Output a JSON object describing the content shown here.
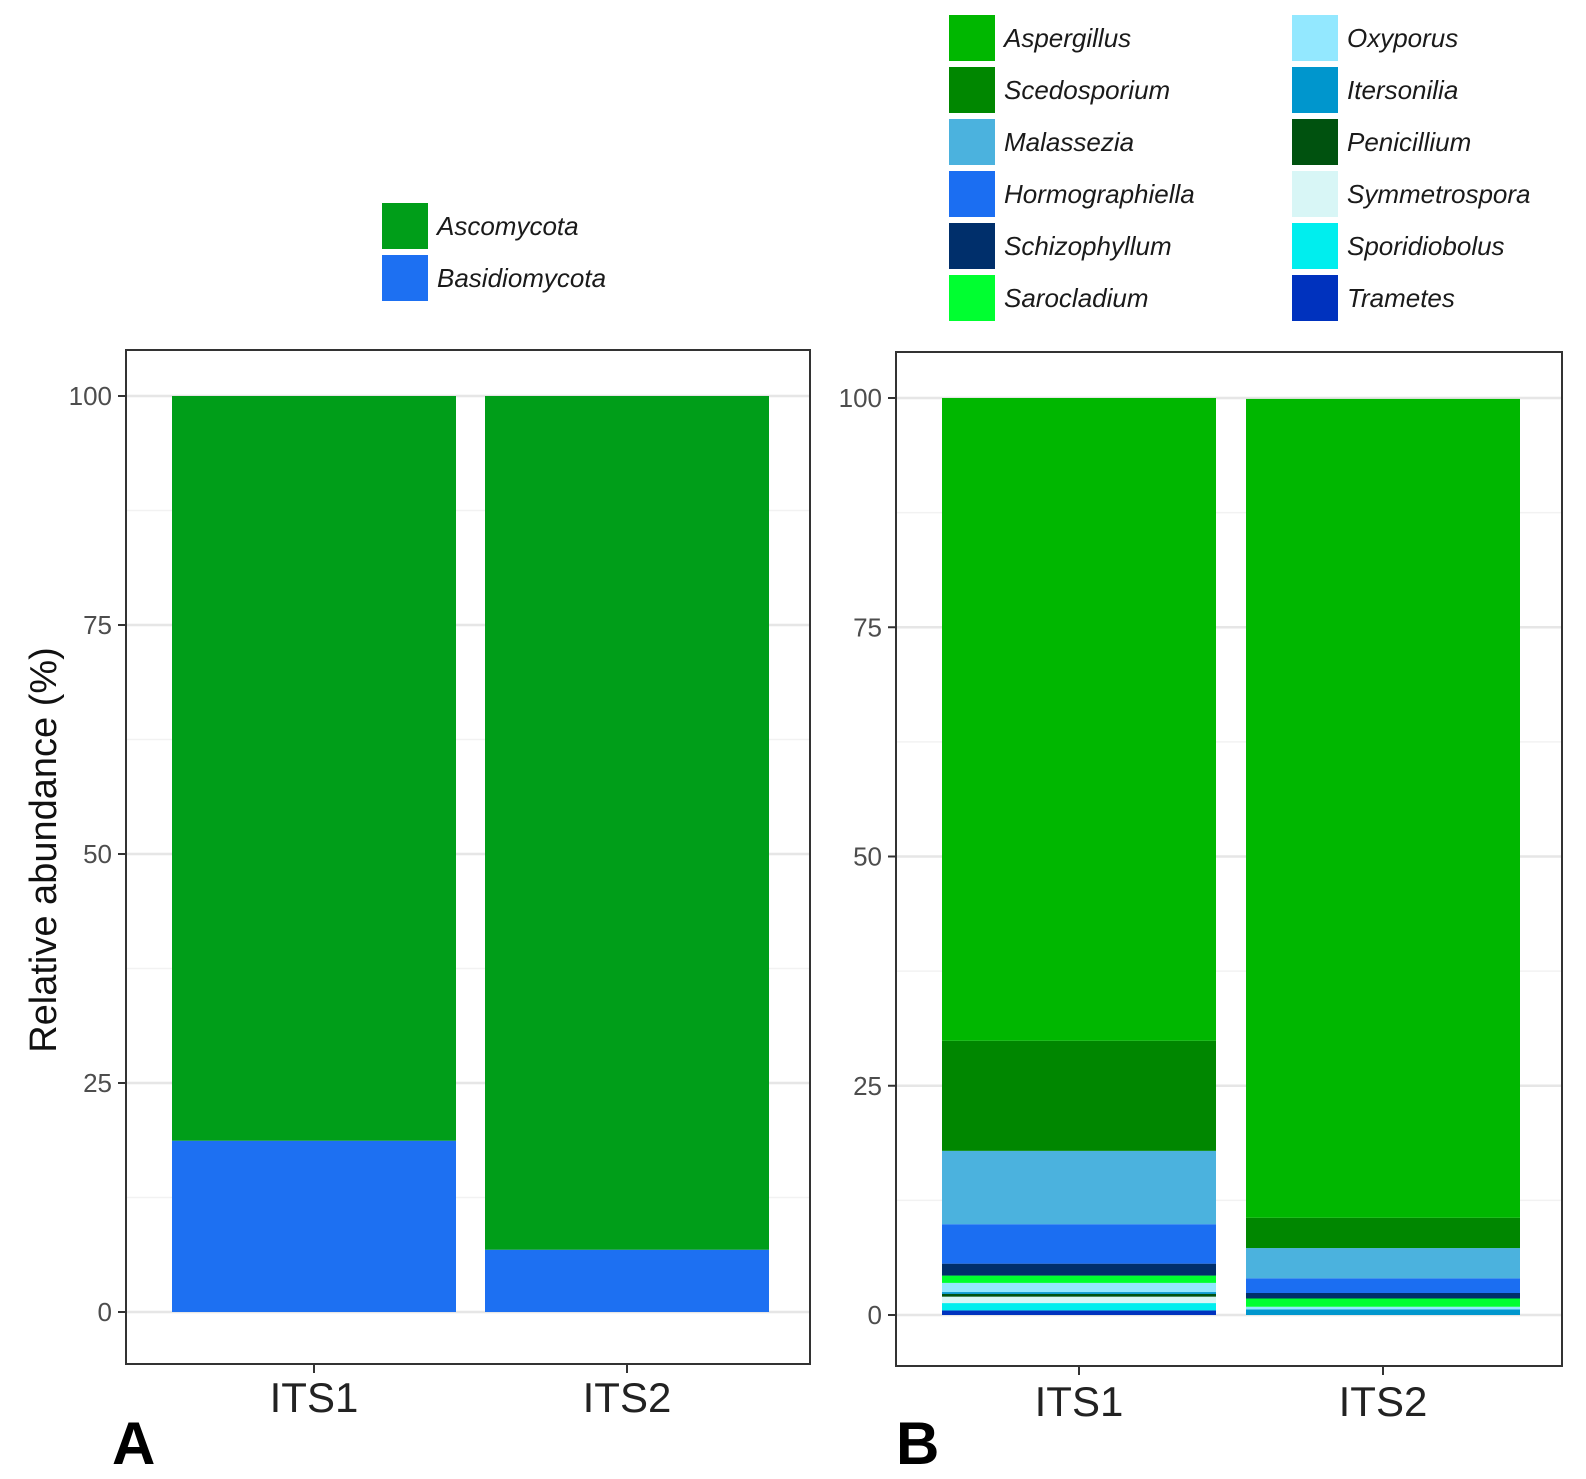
{
  "chart_data": [
    {
      "panel": "A",
      "type": "bar",
      "stacked": true,
      "ylabel": "Relative abundance (%)",
      "ylim": [
        0,
        100
      ],
      "yticks": [
        "0",
        "25",
        "50",
        "75",
        "100"
      ],
      "categories": [
        "ITS1",
        "ITS2"
      ],
      "legend": [
        {
          "name": "Ascomycota",
          "color": "#009e19"
        },
        {
          "name": "Basidiomycota",
          "color": "#1d70f2"
        }
      ],
      "series": [
        {
          "name": "Basidiomycota",
          "color": "#1d70f2",
          "values": [
            18.7,
            6.8
          ]
        },
        {
          "name": "Ascomycota",
          "color": "#009e19",
          "values": [
            81.3,
            93.2
          ]
        }
      ]
    },
    {
      "panel": "B",
      "type": "bar",
      "stacked": true,
      "ylim": [
        0,
        100
      ],
      "yticks": [
        "0",
        "25",
        "50",
        "75",
        "100"
      ],
      "categories": [
        "ITS1",
        "ITS2"
      ],
      "legend": [
        {
          "name": "Aspergillus",
          "color": "#00b700"
        },
        {
          "name": "Scedosporium",
          "color": "#008700"
        },
        {
          "name": "Malassezia",
          "color": "#4bb2de"
        },
        {
          "name": "Hormographiella",
          "color": "#1b6ef2"
        },
        {
          "name": "Schizophyllum",
          "color": "#002f6b"
        },
        {
          "name": "Sarocladium",
          "color": "#00ff30"
        },
        {
          "name": "Oxyporus",
          "color": "#93e8ff"
        },
        {
          "name": "Itersonilia",
          "color": "#0096cd"
        },
        {
          "name": "Penicillium",
          "color": "#00520f"
        },
        {
          "name": "Symmetrospora",
          "color": "#d8f6f6"
        },
        {
          "name": "Sporidiobolus",
          "color": "#00eeee"
        },
        {
          "name": "Trametes",
          "color": "#0032be"
        }
      ],
      "series": [
        {
          "name": "Trametes",
          "color": "#0032be",
          "values": [
            0.5,
            0.0
          ]
        },
        {
          "name": "Sporidiobolus",
          "color": "#00eeee",
          "values": [
            0.8,
            0.0
          ]
        },
        {
          "name": "Symmetrospora",
          "color": "#d8f6f6",
          "values": [
            0.7,
            0.0
          ]
        },
        {
          "name": "Penicillium",
          "color": "#00520f",
          "values": [
            0.3,
            0.0
          ]
        },
        {
          "name": "Itersonilia",
          "color": "#0096cd",
          "values": [
            0.2,
            0.6
          ]
        },
        {
          "name": "Oxyporus",
          "color": "#93e8ff",
          "values": [
            1.0,
            0.3
          ]
        },
        {
          "name": "Sarocladium",
          "color": "#00ff30",
          "values": [
            0.8,
            0.9
          ]
        },
        {
          "name": "Schizophyllum",
          "color": "#002f6b",
          "values": [
            1.3,
            0.6
          ]
        },
        {
          "name": "Hormographiella",
          "color": "#1b6ef2",
          "values": [
            4.3,
            1.6
          ]
        },
        {
          "name": "Malassezia",
          "color": "#4bb2de",
          "values": [
            8.0,
            3.3
          ]
        },
        {
          "name": "Scedosporium",
          "color": "#008700",
          "values": [
            12.0,
            3.3
          ]
        },
        {
          "name": "Aspergillus",
          "color": "#00b700",
          "values": [
            70.1,
            89.3
          ]
        }
      ]
    }
  ]
}
